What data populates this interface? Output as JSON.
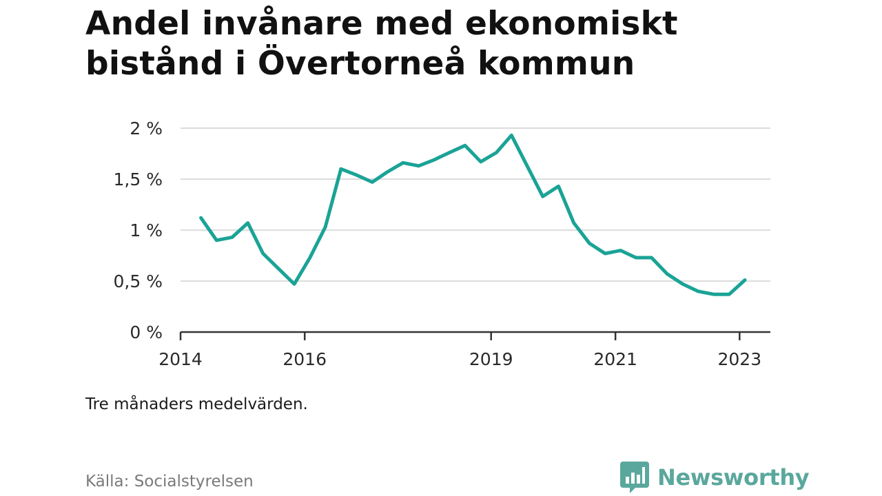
{
  "title": "Andel invånare med ekonomiskt bistånd i Övertorneå kommun",
  "note": "Tre månaders medelvärden.",
  "source": "Källa: Socialstyrelsen",
  "brand": {
    "name": "Newsworthy",
    "icon": "newsworthy-logo-icon",
    "color": "#5aa79d"
  },
  "chart_data": {
    "type": "line",
    "title": "Andel invånare med ekonomiskt bistånd i Övertorneå kommun",
    "xlabel": "",
    "ylabel": "",
    "grid": true,
    "legend": "none",
    "color": "#1aa396",
    "xlim": [
      "2014-01-01",
      "2023-07-01"
    ],
    "ylim": [
      0,
      2
    ],
    "y_ticks": [
      {
        "value": 0,
        "label": "0 %"
      },
      {
        "value": 0.5,
        "label": "0,5 %"
      },
      {
        "value": 1,
        "label": "1 %"
      },
      {
        "value": 1.5,
        "label": "1,5 %"
      },
      {
        "value": 2,
        "label": "2 %"
      }
    ],
    "x_ticks": [
      {
        "value": "2014-01-01",
        "label": "2014"
      },
      {
        "value": "2016-01-01",
        "label": "2016"
      },
      {
        "value": "2019-01-01",
        "label": "2019"
      },
      {
        "value": "2021-01-01",
        "label": "2021"
      },
      {
        "value": "2023-01-01",
        "label": "2023"
      }
    ],
    "series": [
      {
        "values": [
          {
            "x": "2014-05-01",
            "y": 1.12
          },
          {
            "x": "2014-08-01",
            "y": 0.9
          },
          {
            "x": "2014-11-01",
            "y": 0.93
          },
          {
            "x": "2015-02-01",
            "y": 1.07
          },
          {
            "x": "2015-05-01",
            "y": 0.77
          },
          {
            "x": "2015-08-01",
            "y": 0.62
          },
          {
            "x": "2015-11-01",
            "y": 0.47
          },
          {
            "x": "2016-02-01",
            "y": 0.73
          },
          {
            "x": "2016-05-01",
            "y": 1.03
          },
          {
            "x": "2016-08-01",
            "y": 1.6
          },
          {
            "x": "2016-11-01",
            "y": 1.54
          },
          {
            "x": "2017-02-01",
            "y": 1.47
          },
          {
            "x": "2017-05-01",
            "y": 1.57
          },
          {
            "x": "2017-08-01",
            "y": 1.66
          },
          {
            "x": "2017-11-01",
            "y": 1.63
          },
          {
            "x": "2018-02-01",
            "y": 1.69
          },
          {
            "x": "2018-05-01",
            "y": 1.76
          },
          {
            "x": "2018-08-01",
            "y": 1.83
          },
          {
            "x": "2018-11-01",
            "y": 1.67
          },
          {
            "x": "2019-02-01",
            "y": 1.76
          },
          {
            "x": "2019-05-01",
            "y": 1.93
          },
          {
            "x": "2019-08-01",
            "y": 1.63
          },
          {
            "x": "2019-11-01",
            "y": 1.33
          },
          {
            "x": "2020-02-01",
            "y": 1.43
          },
          {
            "x": "2020-05-01",
            "y": 1.07
          },
          {
            "x": "2020-08-01",
            "y": 0.87
          },
          {
            "x": "2020-11-01",
            "y": 0.77
          },
          {
            "x": "2021-02-01",
            "y": 0.8
          },
          {
            "x": "2021-05-01",
            "y": 0.73
          },
          {
            "x": "2021-08-01",
            "y": 0.73
          },
          {
            "x": "2021-11-01",
            "y": 0.57
          },
          {
            "x": "2022-02-01",
            "y": 0.47
          },
          {
            "x": "2022-05-01",
            "y": 0.4
          },
          {
            "x": "2022-08-01",
            "y": 0.37
          },
          {
            "x": "2022-11-01",
            "y": 0.37
          },
          {
            "x": "2023-02-01",
            "y": 0.51
          }
        ]
      }
    ]
  }
}
